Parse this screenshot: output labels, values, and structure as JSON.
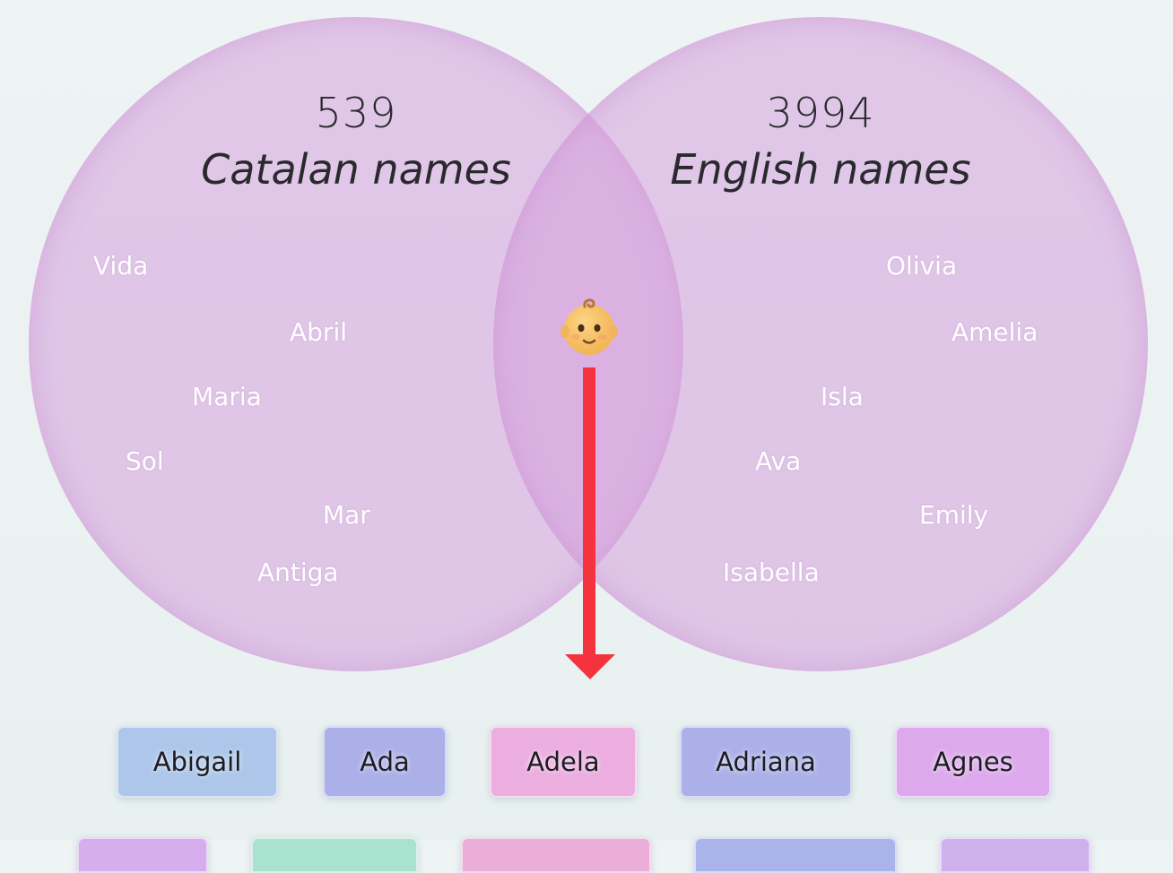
{
  "venn": {
    "left": {
      "count": "539",
      "label": "Catalan names",
      "names": [
        "Vida",
        "Abril",
        "Maria",
        "Sol",
        "Mar",
        "Antiga"
      ]
    },
    "right": {
      "count": "3994",
      "label": "English names",
      "names": [
        "Olivia",
        "Amelia",
        "Isla",
        "Ava",
        "Emily",
        "Isabella"
      ]
    },
    "center_icon": "baby-face-icon",
    "arrow_color": "#f5333f",
    "circle_color": "#d5a0dc"
  },
  "shared_names": [
    {
      "label": "Abigail",
      "color": "#adc6ea"
    },
    {
      "label": "Ada",
      "color": "#abb0e8"
    },
    {
      "label": "Adela",
      "color": "#ebaedf"
    },
    {
      "label": "Adriana",
      "color": "#abb0e8"
    },
    {
      "label": "Agnes",
      "color": "#dcaaec"
    }
  ],
  "shared_names_next_row_colors": [
    "#d6aeee",
    "#a9e3cf",
    "#eaaed8",
    "#aab4ea",
    "#cdb0ec"
  ]
}
